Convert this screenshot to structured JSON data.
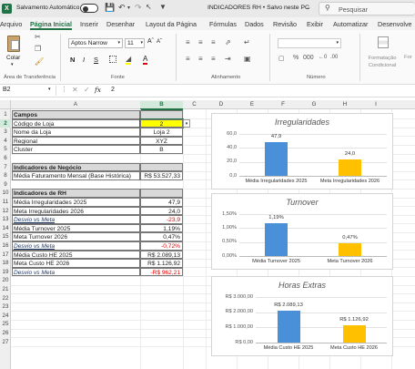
{
  "titlebar": {
    "autosave_label": "Salvamento Automático",
    "title": "INDICADORES RH • Salvo neste PC",
    "search_placeholder": "Pesquisar"
  },
  "ribbon_tabs": [
    "Arquivo",
    "Página Inicial",
    "Inserir",
    "Desenhar",
    "Layout da Página",
    "Fórmulas",
    "Dados",
    "Revisão",
    "Exibir",
    "Automatizar",
    "Desenvolve"
  ],
  "ribbon": {
    "paste_label": "Colar",
    "clipboard_group": "Área de Transferência",
    "font_group": "Fonte",
    "alignment_group": "Alinhamento",
    "number_group": "Número",
    "font_name": "Aptos Narrow",
    "font_size": "11",
    "cond_format_label": "Formatação Condicional",
    "format_table_label": "For"
  },
  "formula_bar": {
    "name_box": "B2",
    "fx": "fx",
    "value": "2"
  },
  "columns": [
    "A",
    "B",
    "C",
    "D",
    "E",
    "F",
    "G",
    "H",
    "I"
  ],
  "rows": [
    {
      "n": "1",
      "a": "Campos",
      "b": "",
      "style": "header"
    },
    {
      "n": "2",
      "a": "Código de Loja",
      "b": "2",
      "style": "selected"
    },
    {
      "n": "3",
      "a": "Nome da Loja",
      "b": "Loja 2",
      "style": ""
    },
    {
      "n": "4",
      "a": "Regional",
      "b": "XYZ",
      "style": ""
    },
    {
      "n": "5",
      "a": "Cluster",
      "b": "B",
      "style": ""
    },
    {
      "n": "6",
      "a": "",
      "b": "",
      "style": ""
    },
    {
      "n": "7",
      "a": "Indicadores de Negócio",
      "b": "",
      "style": "header"
    },
    {
      "n": "8",
      "a": "Média Faturamento Mensal (Base Histórica)",
      "b": "R$ 53.527,33",
      "style": ""
    },
    {
      "n": "9",
      "a": "",
      "b": "",
      "style": ""
    },
    {
      "n": "10",
      "a": "Indicadores de RH",
      "b": "",
      "style": "header"
    },
    {
      "n": "11",
      "a": "Média Irregularidades 2025",
      "b": "47,9",
      "style": ""
    },
    {
      "n": "12",
      "a": "Meta Irregularidades 2026",
      "b": "24,0",
      "style": ""
    },
    {
      "n": "13",
      "a": "Desvio vs Meta",
      "b": "-23,9",
      "style": "desvio"
    },
    {
      "n": "14",
      "a": "Média Turnover 2025",
      "b": "1,19%",
      "style": ""
    },
    {
      "n": "15",
      "a": "Meta Turnover 2026",
      "b": "0,47%",
      "style": ""
    },
    {
      "n": "16",
      "a": "Desvio vs Meta",
      "b": "-0,72%",
      "style": "desvio"
    },
    {
      "n": "17",
      "a": "Média Custo HE 2025",
      "b": "R$ 2.089,13",
      "style": ""
    },
    {
      "n": "18",
      "a": "Meta Custo HE 2026",
      "b": "R$ 1.126,92",
      "style": ""
    },
    {
      "n": "19",
      "a": "Desvio vs Meta",
      "b": "-R$ 962,21",
      "style": "desvio"
    },
    {
      "n": "20",
      "a": "",
      "b": "",
      "style": ""
    },
    {
      "n": "21",
      "a": "",
      "b": "",
      "style": ""
    },
    {
      "n": "22",
      "a": "",
      "b": "",
      "style": ""
    },
    {
      "n": "23",
      "a": "",
      "b": "",
      "style": ""
    },
    {
      "n": "24",
      "a": "",
      "b": "",
      "style": ""
    },
    {
      "n": "25",
      "a": "",
      "b": "",
      "style": ""
    },
    {
      "n": "26",
      "a": "",
      "b": "",
      "style": ""
    },
    {
      "n": "27",
      "a": "",
      "b": "",
      "style": ""
    }
  ],
  "colors": {
    "accent": "#217346",
    "bar_2025": "#4a90d9",
    "bar_2026": "#ffc000",
    "selected_cell": "#ffff00",
    "desvio_red": "#e00000",
    "header_fill": "#d9d9d9"
  },
  "chart_data": [
    {
      "type": "bar",
      "title": "Irregularidades",
      "categories": [
        "Média Irregularidades 2025",
        "Meta Irregularidades 2026"
      ],
      "values": [
        47.9,
        24.0
      ],
      "value_labels": [
        "47,9",
        "24,0"
      ],
      "yticks": [
        "60,0",
        "40,0",
        "20,0",
        "0,0"
      ],
      "ylim": [
        0,
        60
      ]
    },
    {
      "type": "bar",
      "title": "Turnover",
      "categories": [
        "Média Turnover 2025",
        "Meta Turnover 2026"
      ],
      "values": [
        1.19,
        0.47
      ],
      "value_labels": [
        "1,19%",
        "0,47%"
      ],
      "yticks": [
        "1,50%",
        "1,00%",
        "0,50%",
        "0,00%"
      ],
      "ylim": [
        0,
        1.5
      ]
    },
    {
      "type": "bar",
      "title": "Horas Extras",
      "categories": [
        "Média Custo HE 2025",
        "Meta Custo HE 2026"
      ],
      "values": [
        2089.13,
        1126.92
      ],
      "value_labels": [
        "R$ 2.089,13",
        "R$ 1.126,92"
      ],
      "yticks": [
        "R$ 3.000,00",
        "R$ 2.000,00",
        "R$ 1.000,00",
        "R$ 0,00"
      ],
      "ylim": [
        0,
        3000
      ]
    }
  ]
}
